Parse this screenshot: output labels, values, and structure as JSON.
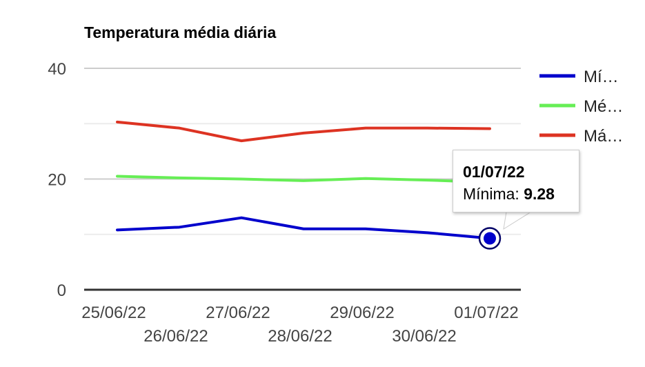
{
  "chart_data": {
    "type": "line",
    "title": "Temperatura média diária",
    "xlabel": "",
    "ylabel": "",
    "categories": [
      "25/06/22",
      "26/06/22",
      "27/06/22",
      "28/06/22",
      "29/06/22",
      "30/06/22",
      "01/07/22"
    ],
    "yticks": [
      "0",
      "20",
      "40"
    ],
    "ylim": [
      0,
      40
    ],
    "grid": true,
    "legend_position": "right",
    "series": [
      {
        "name": "Mí…",
        "color": "#0000cc",
        "values": [
          10.8,
          11.3,
          13.0,
          11.0,
          11.0,
          10.3,
          9.28
        ]
      },
      {
        "name": "Mé…",
        "color": "#66ee55",
        "values": [
          20.5,
          20.2,
          20.0,
          19.7,
          20.1,
          19.8,
          19.4
        ]
      },
      {
        "name": "Má…",
        "color": "#dd3322",
        "values": [
          30.3,
          29.2,
          26.9,
          28.3,
          29.2,
          29.2,
          29.1
        ]
      }
    ],
    "tooltip": {
      "date": "01/07/22",
      "label": "Mínima:",
      "value": "9.28"
    }
  }
}
